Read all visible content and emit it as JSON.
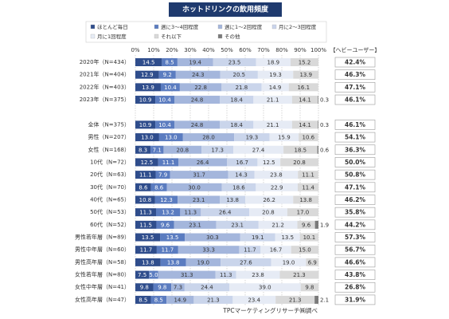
{
  "chart_data": {
    "type": "stacked_barh",
    "title": "ホットドリンクの飲用頻度",
    "source": "TPCマーケティングリサーチ㈱調べ",
    "categories": [
      "2020年（N=434）",
      "2021年（N=404）",
      "2022年（N=403）",
      "2023年（N=375）",
      null,
      "全体（N=375）",
      "男性（N=207）",
      "女性（N=168）",
      "10代（N=72）",
      "20代（N=63）",
      "30代（N=70）",
      "40代（N=65）",
      "50代（N=53）",
      "60代（N=52）",
      "男性若年層（N=89）",
      "男性中年層（N=60）",
      "男性高年層（N=58）",
      "女性若年層（N=80）",
      "女性中年層（N=41）",
      "女性高年層（N=47）"
    ],
    "series": [
      {
        "name": "ほとんど毎日",
        "color": "#2f4d8c",
        "values": [
          14.5,
          12.9,
          13.9,
          10.9,
          null,
          10.9,
          13.0,
          8.3,
          12.5,
          11.1,
          8.6,
          10.8,
          11.3,
          11.5,
          13.5,
          11.7,
          13.8,
          7.5,
          9.8,
          8.5
        ],
        "value_labels": [
          "14.5",
          "12.9",
          "13.9",
          "10.9",
          null,
          "10.9",
          "13.0",
          "8.3",
          "12.5",
          "11.1",
          "8.6",
          "10.8",
          "11.3",
          "11.5",
          "13.5",
          "11.7",
          "13.8",
          "7.5",
          "9.8",
          "8.5"
        ]
      },
      {
        "name": "週に3～4回程度",
        "color": "#5b7cc0",
        "values": [
          8.5,
          9.2,
          10.4,
          10.4,
          null,
          10.4,
          13.0,
          7.1,
          11.1,
          7.9,
          8.6,
          12.3,
          13.2,
          9.6,
          13.5,
          11.7,
          13.8,
          5.0,
          9.8,
          8.5
        ],
        "value_labels": [
          "8.5",
          "9.2",
          "10.4",
          "10.4",
          null,
          "10.4",
          "13.0",
          "7.1",
          "11.1",
          "7.9",
          "8.6",
          "12.3",
          "13.2",
          "9.6",
          "13.5",
          "11.7",
          "13.8",
          "5.0",
          "9.8",
          "8.5"
        ]
      },
      {
        "name": "週に1～2回程度",
        "color": "#a4b6dc",
        "values": [
          19.4,
          24.3,
          22.8,
          24.8,
          null,
          24.8,
          28.0,
          20.8,
          26.4,
          31.7,
          30.0,
          23.1,
          11.3,
          23.1,
          30.3,
          33.3,
          19.0,
          31.3,
          7.3,
          14.9
        ],
        "value_labels": [
          "19.4",
          "24.3",
          "22.8",
          "24.8",
          null,
          "24.8",
          "28.0",
          "20.8",
          "26.4",
          "31.7",
          "30.0",
          "23.1",
          "11.3",
          "23.1",
          "30.3",
          "33.3",
          "19.0",
          "31.3",
          "7.3",
          "14.9"
        ]
      },
      {
        "name": "月に2～3回程度",
        "color": "#cad5eb",
        "values": [
          23.5,
          20.5,
          21.8,
          18.4,
          null,
          18.4,
          19.3,
          17.3,
          16.7,
          14.3,
          18.6,
          13.8,
          26.4,
          23.1,
          19.1,
          11.7,
          27.6,
          11.3,
          24.4,
          21.3
        ],
        "value_labels": [
          "23.5",
          "20.5",
          "21.8",
          "18.4",
          null,
          "18.4",
          "19.3",
          "17.3",
          "16.7",
          "14.3",
          "18.6",
          "13.8",
          "26.4",
          "23.1",
          "19.1",
          "11.7",
          "27.6",
          "11.3",
          "24.4",
          "21.3"
        ]
      },
      {
        "name": "月に1回程度",
        "color": "#e6ebf5",
        "values": [
          18.9,
          19.3,
          14.9,
          21.1,
          null,
          21.1,
          15.9,
          27.4,
          12.5,
          23.8,
          22.9,
          26.2,
          20.8,
          21.2,
          13.5,
          16.7,
          19.0,
          23.8,
          39.0,
          23.4
        ],
        "value_labels": [
          "18.9",
          "19.3",
          "14.9",
          "21.1",
          null,
          "21.1",
          "15.9",
          "27.4",
          "12.5",
          "23.8",
          "22.9",
          "26.2",
          "20.8",
          "21.2",
          "13.5",
          "16.7",
          "19.0",
          "23.8",
          "39.0",
          "23.4"
        ]
      },
      {
        "name": "それ以下",
        "color": "#d9d9d9",
        "values": [
          15.2,
          13.9,
          16.1,
          14.1,
          null,
          14.1,
          10.6,
          18.5,
          20.8,
          11.1,
          11.4,
          13.8,
          17.0,
          9.6,
          10.1,
          15.0,
          6.9,
          21.3,
          9.8,
          21.3
        ],
        "value_labels": [
          "15.2",
          "13.9",
          "16.1",
          "14.1",
          null,
          "14.1",
          "10.6",
          "18.5",
          "20.8",
          "11.1",
          "11.4",
          "13.8",
          "17.0",
          "9.6",
          "10.1",
          "15.0",
          "6.9",
          "21.3",
          "9.8",
          "21.3"
        ]
      },
      {
        "name": "その他",
        "color": "#7a7a7a",
        "values": [
          0,
          0,
          0,
          0.3,
          null,
          0.3,
          0,
          0.6,
          0,
          0,
          0,
          0,
          0,
          1.9,
          0,
          0,
          0,
          0,
          0,
          2.1
        ],
        "value_labels": [
          null,
          null,
          null,
          "0.3",
          null,
          "0.3",
          null,
          "0.6",
          null,
          null,
          null,
          null,
          null,
          "1.9",
          null,
          null,
          null,
          null,
          null,
          "2.1"
        ]
      }
    ],
    "xlim": [
      0,
      100
    ],
    "xticks": [
      {
        "value": 0,
        "label": "0%"
      },
      {
        "value": 10,
        "label": "10%"
      },
      {
        "value": 20,
        "label": "20%"
      },
      {
        "value": 30,
        "label": "30%"
      },
      {
        "value": 40,
        "label": "40%"
      },
      {
        "value": 50,
        "label": "50%"
      },
      {
        "value": 60,
        "label": "60%"
      },
      {
        "value": 70,
        "label": "70%"
      },
      {
        "value": 80,
        "label": "80%"
      },
      {
        "value": 90,
        "label": "90%"
      },
      {
        "value": 100,
        "label": "100%"
      }
    ],
    "grid": true,
    "heavy_user": {
      "header": "【ヘビーユーザー】",
      "values": [
        42.4,
        46.3,
        47.1,
        46.1,
        null,
        46.1,
        54.1,
        36.3,
        50.0,
        50.8,
        47.1,
        46.2,
        35.8,
        44.2,
        57.3,
        56.7,
        46.6,
        43.8,
        26.8,
        31.9
      ],
      "value_labels": [
        "42.4%",
        "46.3%",
        "47.1%",
        "46.1%",
        null,
        "46.1%",
        "54.1%",
        "36.3%",
        "50.0%",
        "50.8%",
        "47.1%",
        "46.2%",
        "35.8%",
        "44.2%",
        "57.3%",
        "56.7%",
        "46.6%",
        "43.8%",
        "26.8%",
        "31.9%"
      ]
    }
  }
}
